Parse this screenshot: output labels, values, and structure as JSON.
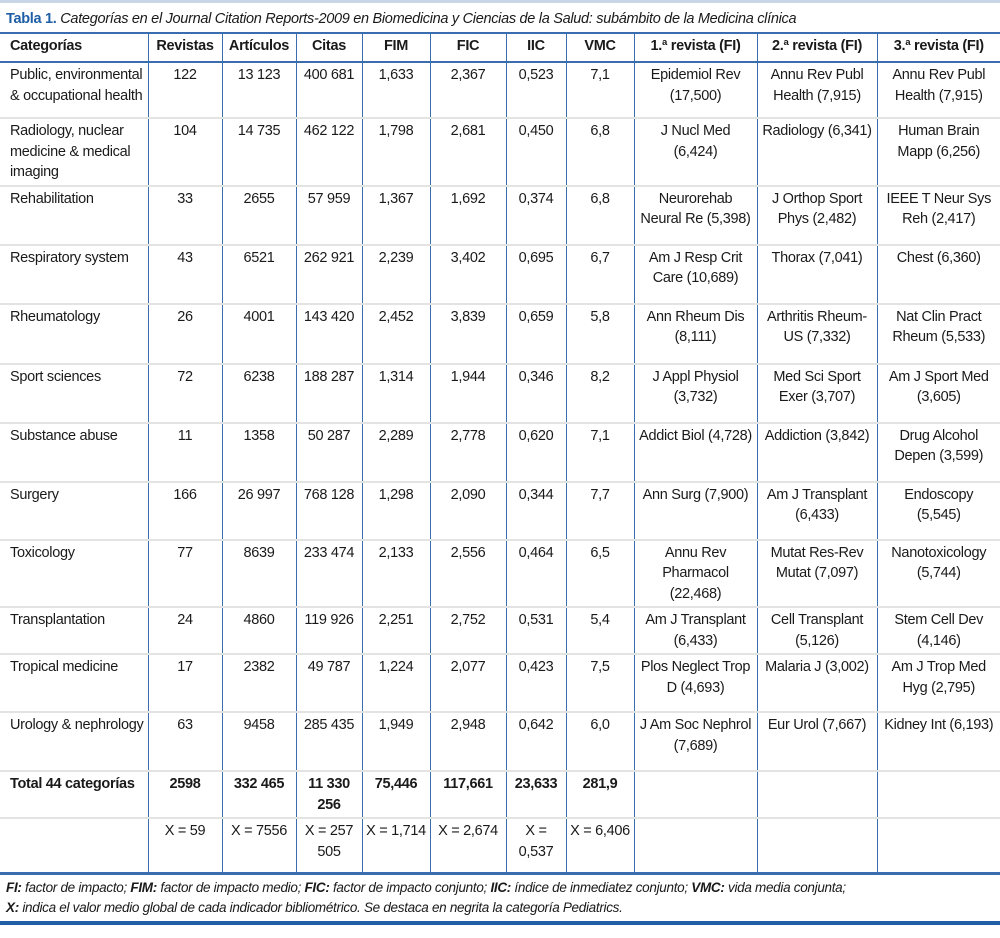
{
  "title": {
    "label": "Tabla 1.",
    "text": "Categorías en el Journal Citation Reports-2009 en Biomedicina y Ciencias de la Salud: subámbito de la Medicina clínica"
  },
  "headers": [
    "Categorías",
    "Revistas",
    "Artículos",
    "Citas",
    "FIM",
    "FIC",
    "IIC",
    "VMC",
    "1.ª revista (FI)",
    "2.ª revista (FI)",
    "3.ª revista (FI)"
  ],
  "rows": [
    [
      "Public, environmental & occupational health",
      "122",
      "13 123",
      "400 681",
      "1,633",
      "2,367",
      "0,523",
      "7,1",
      "Epidemiol Rev (17,500)",
      "Annu Rev Publ Health (7,915)",
      "Annu Rev Publ Health (7,915)"
    ],
    [
      "Radiology, nuclear medicine & medical imaging",
      "104",
      "14 735",
      "462 122",
      "1,798",
      "2,681",
      "0,450",
      "6,8",
      "J Nucl Med (6,424)",
      "Radiology (6,341)",
      "Human Brain Mapp (6,256)"
    ],
    [
      "Rehabilitation",
      "33",
      "2655",
      "57 959",
      "1,367",
      "1,692",
      "0,374",
      "6,8",
      "Neurorehab Neural Re (5,398)",
      "J Orthop Sport Phys (2,482)",
      "IEEE T Neur Sys Reh (2,417)"
    ],
    [
      "Respiratory system",
      "43",
      "6521",
      "262 921",
      "2,239",
      "3,402",
      "0,695",
      "6,7",
      "Am J Resp Crit Care (10,689)",
      "Thorax (7,041)",
      "Chest (6,360)"
    ],
    [
      "Rheumatology",
      "26",
      "4001",
      "143 420",
      "2,452",
      "3,839",
      "0,659",
      "5,8",
      "Ann Rheum Dis (8,111)",
      "Arthritis Rheum-US (7,332)",
      "Nat Clin Pract Rheum (5,533)"
    ],
    [
      "Sport sciences",
      "72",
      "6238",
      "188 287",
      "1,314",
      "1,944",
      "0,346",
      "8,2",
      "J Appl Physiol (3,732)",
      "Med Sci Sport Exer (3,707)",
      "Am J Sport Med (3,605)"
    ],
    [
      "Substance abuse",
      "11",
      "1358",
      "50 287",
      "2,289",
      "2,778",
      "0,620",
      "7,1",
      "Addict Biol (4,728)",
      "Addiction (3,842)",
      "Drug Alcohol Depen (3,599)"
    ],
    [
      "Surgery",
      "166",
      "26 997",
      "768 128",
      "1,298",
      "2,090",
      "0,344",
      "7,7",
      "Ann Surg (7,900)",
      "Am J Transplant (6,433)",
      "Endoscopy (5,545)"
    ],
    [
      "Toxicology",
      "77",
      "8639",
      "233 474",
      "2,133",
      "2,556",
      "0,464",
      "6,5",
      "Annu Rev Pharmacol (22,468)",
      "Mutat Res-Rev Mutat (7,097)",
      "Nanotoxicology (5,744)"
    ],
    [
      "Transplantation",
      "24",
      "4860",
      "119 926",
      "2,251",
      "2,752",
      "0,531",
      "5,4",
      "Am J Transplant (6,433)",
      "Cell Transplant (5,126)",
      "Stem Cell Dev (4,146)"
    ],
    [
      "Tropical medicine",
      "17",
      "2382",
      "49 787",
      "1,224",
      "2,077",
      "0,423",
      "7,5",
      "Plos Neglect Trop D (4,693)",
      "Malaria J (3,002)",
      "Am J Trop Med Hyg (2,795)"
    ],
    [
      "Urology & nephrology",
      "63",
      "9458",
      "285 435",
      "1,949",
      "2,948",
      "0,642",
      "6,0",
      "J Am Soc Nephrol (7,689)",
      "Eur Urol (7,667)",
      "Kidney Int (6,193)"
    ]
  ],
  "total": [
    "Total 44 categorías",
    "2598",
    "332 465",
    "11 330 256",
    "75,446",
    "117,661",
    "23,633",
    "281,9",
    "",
    "",
    ""
  ],
  "means": [
    "",
    "X = 59",
    "X = 7556",
    "X = 257 505",
    "X = 1,714",
    "X = 2,674",
    "X = 0,537",
    "X = 6,406",
    "",
    "",
    ""
  ],
  "footnote": {
    "line1": [
      [
        "FI:",
        " factor de impacto; "
      ],
      [
        "FIM:",
        " factor de impacto medio; "
      ],
      [
        "FIC:",
        " factor de impacto conjunto; "
      ],
      [
        "IIC:",
        " índice de inmediatez conjunto; "
      ],
      [
        "VMC:",
        " vida media conjunta;"
      ]
    ],
    "line2": [
      [
        "X:",
        " indica el valor medio global de cada indicador bibliométrico. Se destaca en negrita la categoría Pediatrics."
      ]
    ]
  },
  "colors": {
    "accent": "#1f5fa6",
    "rule": "#3a6db0",
    "row_divider": "#e3e3e3"
  }
}
